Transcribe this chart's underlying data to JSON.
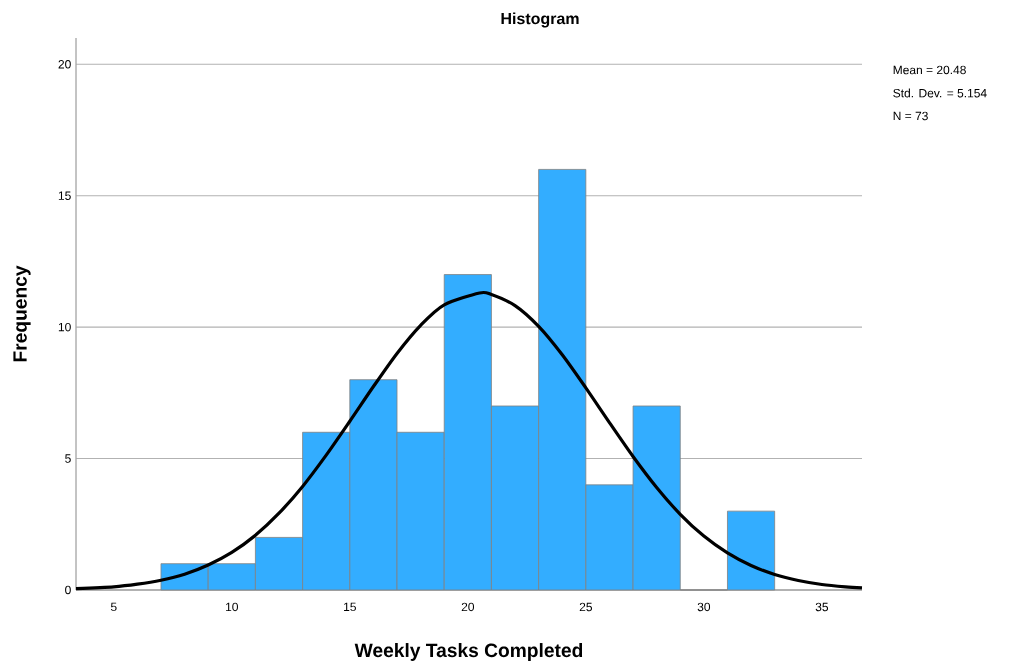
{
  "chart_data": {
    "type": "histogram",
    "title": "Histogram",
    "xlabel": "Weekly Tasks Completed",
    "ylabel": "Frequency",
    "bins": [
      7,
      9,
      11,
      13,
      15,
      17,
      19,
      21,
      23,
      25,
      27,
      29,
      31,
      33
    ],
    "values": [
      1,
      1,
      2,
      6,
      8,
      6,
      12,
      7,
      16,
      4,
      7,
      0,
      3
    ],
    "color": "#33adff",
    "series": [
      {
        "type": "line",
        "color": "#000000",
        "x": [
          3.4,
          5,
          6,
          7,
          8,
          9,
          10,
          11,
          12,
          13,
          14,
          15,
          16,
          17,
          18,
          19,
          20.5,
          21,
          22,
          23,
          24,
          25,
          26,
          27,
          28,
          29,
          30,
          31,
          32,
          33,
          34,
          35,
          36,
          36.7
        ],
        "values": [
          0.05,
          0.12,
          0.22,
          0.37,
          0.6,
          0.95,
          1.43,
          2.08,
          2.92,
          3.94,
          5.13,
          6.42,
          7.74,
          9.0,
          10.07,
          10.85,
          11.3,
          11.24,
          10.82,
          10.03,
          8.95,
          7.69,
          6.37,
          5.08,
          3.9,
          2.88,
          2.05,
          1.41,
          0.93,
          0.59,
          0.36,
          0.21,
          0.12,
          0.08
        ]
      }
    ],
    "xlim": [
      3.4,
      36.7
    ],
    "ylim": [
      0,
      21
    ],
    "xticks": [
      5,
      10,
      15,
      20,
      25,
      30,
      35
    ],
    "yticks": [
      0,
      5,
      10,
      15,
      20
    ],
    "grid": "y",
    "annotations": [
      "Mean = 20.48",
      "Std. Dev. = 5.154",
      "N = 73"
    ]
  }
}
